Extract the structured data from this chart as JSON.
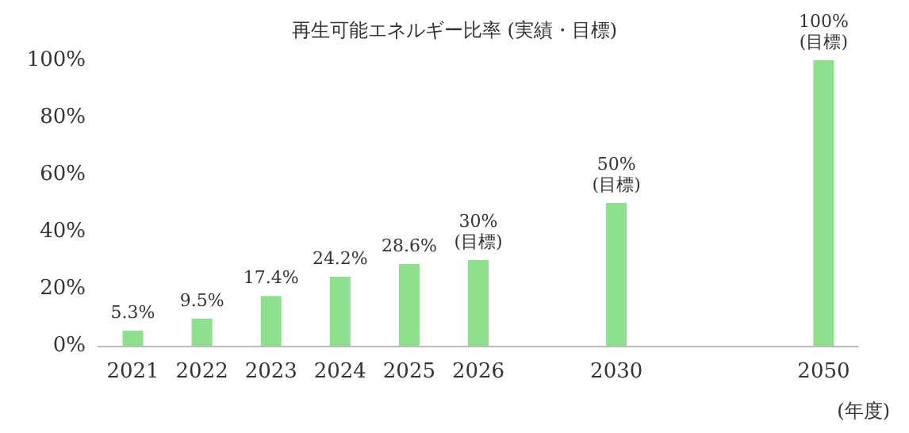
{
  "chart_data": {
    "type": "bar",
    "title": "再生可能エネルギー比率 (実績・目標)",
    "xlabel": "(年度)",
    "categories": [
      "2021",
      "2022",
      "2023",
      "2024",
      "2025",
      "2026",
      null,
      "2030",
      null,
      null,
      "2050"
    ],
    "values": [
      5.3,
      9.5,
      17.4,
      24.2,
      28.6,
      30,
      null,
      50,
      null,
      null,
      100
    ],
    "value_labels": [
      "5.3%",
      "9.5%",
      "17.4%",
      "24.2%",
      "28.6%",
      "30%\n(目標)",
      null,
      "50%\n(目標)",
      null,
      null,
      "100%\n(目標)"
    ],
    "color": "#8ee08f",
    "ylim": [
      0,
      100
    ],
    "yticks": [
      {
        "value": 0,
        "label": "0%"
      },
      {
        "value": 20,
        "label": "20%"
      },
      {
        "value": 40,
        "label": "40%"
      },
      {
        "value": 60,
        "label": "60%"
      },
      {
        "value": 80,
        "label": "80%"
      },
      {
        "value": 100,
        "label": "100%"
      }
    ],
    "grid": false
  }
}
